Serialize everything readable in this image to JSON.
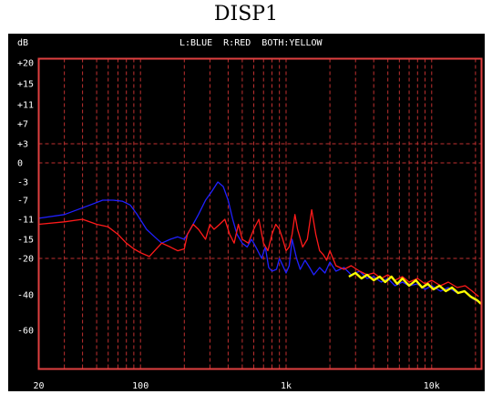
{
  "page_title": "DISP1",
  "colors": {
    "background": "#000000",
    "frame": "#e04040",
    "grid": "#c03030",
    "text": "#ffffff",
    "left_blue": "#2020ff",
    "right_red": "#ff1a1a",
    "both_yellow": "#ffff00"
  },
  "chart_data": {
    "type": "line",
    "title": "",
    "ylabel": "dB",
    "legend": [
      {
        "key": "L",
        "color_name": "BLUE"
      },
      {
        "key": "R",
        "color_name": "RED"
      },
      {
        "key": "BOTH",
        "color_name": "YELLOW"
      }
    ],
    "legend_text": "L:BLUE  R:RED  BOTH:YELLOW",
    "y_tick_labels": [
      "+20",
      "+15",
      "+11",
      "+7",
      "+3",
      "0",
      "-3",
      "-7",
      "-11",
      "-15",
      "-20",
      "-40",
      "-60"
    ],
    "x_tick_labels": [
      "20",
      "100",
      "1k",
      "10k"
    ],
    "x_ticks_hz": [
      20,
      100,
      1000,
      10000
    ],
    "x_scale": "log",
    "xlim_hz": [
      20,
      22000
    ],
    "grid": true,
    "series": [
      {
        "name": "L",
        "color": "BLUE",
        "points": [
          [
            20,
            -10.8
          ],
          [
            30,
            -10
          ],
          [
            45,
            -8
          ],
          [
            55,
            -7
          ],
          [
            65,
            -7
          ],
          [
            75,
            -7.2
          ],
          [
            85,
            -8
          ],
          [
            95,
            -10
          ],
          [
            110,
            -13
          ],
          [
            125,
            -14.5
          ],
          [
            140,
            -16
          ],
          [
            160,
            -15
          ],
          [
            180,
            -14.5
          ],
          [
            200,
            -15
          ],
          [
            220,
            -13
          ],
          [
            250,
            -10
          ],
          [
            280,
            -7
          ],
          [
            310,
            -5
          ],
          [
            340,
            -3
          ],
          [
            370,
            -4
          ],
          [
            400,
            -7
          ],
          [
            430,
            -11
          ],
          [
            460,
            -14
          ],
          [
            500,
            -16
          ],
          [
            540,
            -17
          ],
          [
            580,
            -15
          ],
          [
            620,
            -17
          ],
          [
            680,
            -20
          ],
          [
            720,
            -17
          ],
          [
            760,
            -25
          ],
          [
            800,
            -27
          ],
          [
            860,
            -26
          ],
          [
            900,
            -20
          ],
          [
            950,
            -24
          ],
          [
            1000,
            -28
          ],
          [
            1050,
            -24
          ],
          [
            1100,
            -15
          ],
          [
            1180,
            -20
          ],
          [
            1250,
            -26
          ],
          [
            1350,
            -21
          ],
          [
            1450,
            -25
          ],
          [
            1550,
            -29
          ],
          [
            1700,
            -25
          ],
          [
            1850,
            -28
          ],
          [
            2000,
            -22
          ],
          [
            2200,
            -27
          ],
          [
            2500,
            -25
          ],
          [
            2800,
            -29
          ],
          [
            3200,
            -27
          ],
          [
            3600,
            -31
          ],
          [
            4000,
            -30
          ],
          [
            4500,
            -33
          ],
          [
            5000,
            -31
          ],
          [
            5600,
            -35
          ],
          [
            6300,
            -33
          ],
          [
            7000,
            -35
          ],
          [
            8000,
            -34
          ],
          [
            9000,
            -37
          ],
          [
            10000,
            -35
          ],
          [
            11500,
            -38
          ],
          [
            13000,
            -36
          ],
          [
            15000,
            -39
          ],
          [
            17000,
            -38
          ],
          [
            19000,
            -42
          ],
          [
            21000,
            -44
          ]
        ]
      },
      {
        "name": "R",
        "color": "RED",
        "points": [
          [
            20,
            -12
          ],
          [
            30,
            -11.5
          ],
          [
            40,
            -11
          ],
          [
            50,
            -12
          ],
          [
            60,
            -12.5
          ],
          [
            70,
            -14
          ],
          [
            80,
            -16
          ],
          [
            90,
            -17.5
          ],
          [
            100,
            -18.5
          ],
          [
            115,
            -19.5
          ],
          [
            125,
            -18
          ],
          [
            140,
            -16
          ],
          [
            160,
            -17
          ],
          [
            180,
            -18
          ],
          [
            200,
            -17.5
          ],
          [
            210,
            -14
          ],
          [
            230,
            -12
          ],
          [
            250,
            -13
          ],
          [
            280,
            -15
          ],
          [
            300,
            -12
          ],
          [
            320,
            -13
          ],
          [
            350,
            -12
          ],
          [
            380,
            -11
          ],
          [
            410,
            -14
          ],
          [
            440,
            -16
          ],
          [
            470,
            -12
          ],
          [
            500,
            -15
          ],
          [
            550,
            -16
          ],
          [
            600,
            -13
          ],
          [
            650,
            -11
          ],
          [
            700,
            -16
          ],
          [
            750,
            -18
          ],
          [
            800,
            -14
          ],
          [
            850,
            -12
          ],
          [
            900,
            -13
          ],
          [
            950,
            -15
          ],
          [
            1000,
            -18
          ],
          [
            1050,
            -17
          ],
          [
            1100,
            -14
          ],
          [
            1150,
            -10
          ],
          [
            1200,
            -13
          ],
          [
            1300,
            -17
          ],
          [
            1400,
            -15
          ],
          [
            1500,
            -9
          ],
          [
            1600,
            -14
          ],
          [
            1700,
            -18
          ],
          [
            1800,
            -19
          ],
          [
            1900,
            -21
          ],
          [
            2000,
            -18
          ],
          [
            2200,
            -24
          ],
          [
            2500,
            -26
          ],
          [
            2800,
            -24
          ],
          [
            3200,
            -27
          ],
          [
            3600,
            -29
          ],
          [
            4000,
            -28
          ],
          [
            4500,
            -31
          ],
          [
            5000,
            -29
          ],
          [
            5600,
            -32
          ],
          [
            6300,
            -30
          ],
          [
            7000,
            -33
          ],
          [
            8000,
            -31
          ],
          [
            9000,
            -34
          ],
          [
            10000,
            -32
          ],
          [
            11500,
            -35
          ],
          [
            13000,
            -33
          ],
          [
            15000,
            -36
          ],
          [
            17000,
            -35
          ],
          [
            19000,
            -38
          ],
          [
            21000,
            -41
          ]
        ]
      },
      {
        "name": "BOTH",
        "color": "YELLOW",
        "points": [
          [
            2700,
            -30
          ],
          [
            3000,
            -28
          ],
          [
            3300,
            -31
          ],
          [
            3600,
            -29
          ],
          [
            4000,
            -32
          ],
          [
            4400,
            -30
          ],
          [
            4800,
            -33
          ],
          [
            5300,
            -30
          ],
          [
            5800,
            -34
          ],
          [
            6300,
            -31
          ],
          [
            7000,
            -35
          ],
          [
            7800,
            -32
          ],
          [
            8600,
            -36
          ],
          [
            9400,
            -34
          ],
          [
            10300,
            -37
          ],
          [
            11300,
            -35
          ],
          [
            12500,
            -38
          ],
          [
            13800,
            -36
          ],
          [
            15200,
            -39
          ],
          [
            16800,
            -38
          ],
          [
            18500,
            -41
          ],
          [
            20500,
            -43
          ],
          [
            21800,
            -45
          ]
        ]
      }
    ]
  }
}
